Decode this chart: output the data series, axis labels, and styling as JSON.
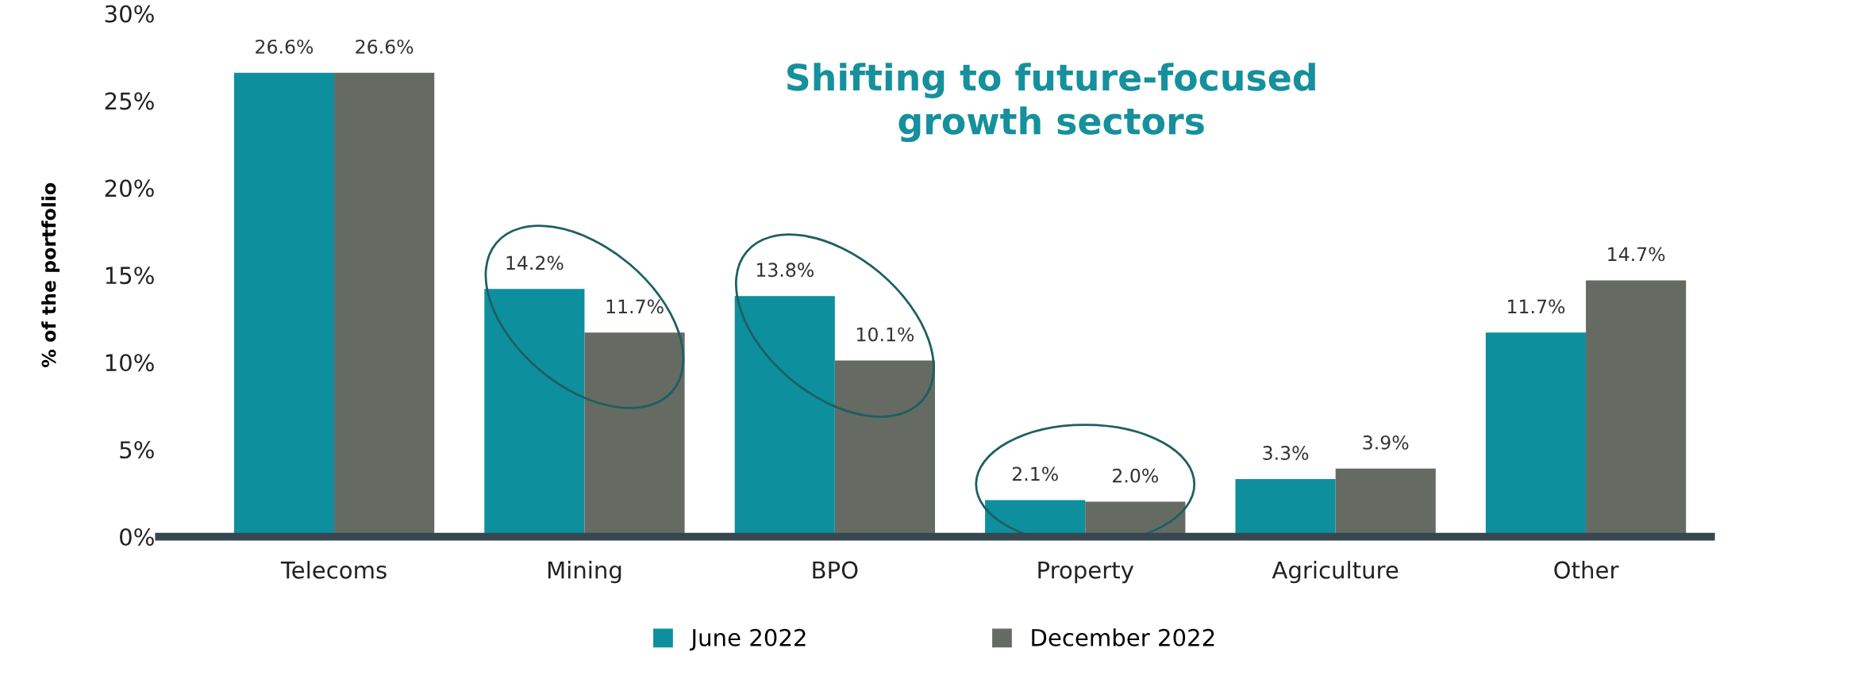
{
  "chart_data": {
    "type": "bar",
    "title": "Shifting to future-focused\ngrowth sectors",
    "ylabel": "% of the portfolio",
    "categories": [
      "Telecoms",
      "Mining",
      "BPO",
      "Property",
      "Agriculture",
      "Other"
    ],
    "series": [
      {
        "name": "June 2022",
        "color": "#0e8f9e",
        "values": [
          26.6,
          14.2,
          13.8,
          2.1,
          3.3,
          11.7
        ],
        "value_labels": [
          "26.6%",
          "14.2%",
          "13.8%",
          "2.1%",
          "3.3%",
          "11.7%"
        ]
      },
      {
        "name": "December 2022",
        "color": "#656b63",
        "values": [
          26.6,
          11.7,
          10.1,
          2.0,
          3.9,
          14.7
        ],
        "value_labels": [
          "26.6%",
          "11.7%",
          "10.1%",
          "2.0%",
          "3.9%",
          "14.7%"
        ]
      }
    ],
    "ylim": [
      0,
      30
    ],
    "yticks": [
      {
        "value": 0,
        "label": "0%"
      },
      {
        "value": 5,
        "label": "5%"
      },
      {
        "value": 10,
        "label": "10%"
      },
      {
        "value": 15,
        "label": "15%"
      },
      {
        "value": 20,
        "label": "20%"
      },
      {
        "value": 25,
        "label": "25%"
      },
      {
        "value": 30,
        "label": "30%"
      }
    ],
    "grid": false,
    "legend": "bottom"
  }
}
